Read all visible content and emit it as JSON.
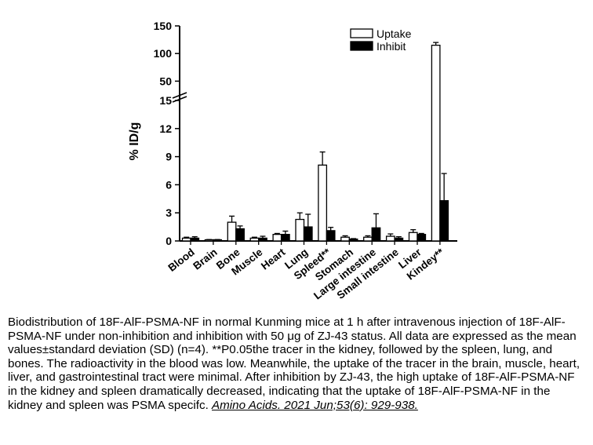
{
  "chart_data": {
    "type": "bar",
    "ylabel": "% ID/g",
    "categories": [
      "Blood",
      "Brain",
      "Bone",
      "Muscle",
      "Heart",
      "Lung",
      "Spleed**",
      "Stomach",
      "Large intestine",
      "Small intestine",
      "Liver",
      "Kindey**"
    ],
    "series": [
      {
        "name": "Uptake",
        "color": "#ffffff",
        "values": [
          0.3,
          0.1,
          2.0,
          0.3,
          0.7,
          2.3,
          8.1,
          0.4,
          0.4,
          0.5,
          0.9,
          115
        ],
        "errors": [
          0.1,
          0.05,
          0.65,
          0.1,
          0.1,
          0.7,
          1.4,
          0.15,
          0.15,
          0.25,
          0.3,
          5
        ]
      },
      {
        "name": "Inhibit",
        "color": "#000000",
        "values": [
          0.3,
          0.1,
          1.3,
          0.3,
          0.7,
          1.5,
          1.1,
          0.2,
          1.4,
          0.3,
          0.7,
          4.3
        ],
        "errors": [
          0.15,
          0.05,
          0.3,
          0.2,
          0.35,
          1.35,
          0.35,
          0.05,
          1.5,
          0.15,
          0.1,
          2.9
        ]
      }
    ],
    "y_axis": {
      "broken": true,
      "lower_range": [
        0,
        15
      ],
      "lower_ticks": [
        "0",
        "3",
        "6",
        "9",
        "12",
        "15"
      ],
      "upper_range": [
        25,
        150
      ],
      "upper_ticks": [
        "50",
        "100",
        "150"
      ]
    },
    "legend_position": "top-right",
    "grid": false
  },
  "caption": {
    "text": "Biodistribution of 18F-AlF-PSMA-NF in normal Kunming mice at 1  h after intravenous injection of 18F-AlF-PSMA-NF under non-inhibition and inhibition with 50  μg of ZJ-43 status. All data are expressed as the mean values±standard deviation (SD) (n=4). **P0.05the tracer in the kidney, followed by the spleen, lung, and bones. The radioactivity in the blood was low. Meanwhile, the uptake of the tracer in the brain, muscle, heart, liver, and gastrointestinal tract were minimal. After inhibition by ZJ-43, the high uptake of 18F-AlF-PSMA-NF in the kidney and spleen dramatically decreased, indicating that the uptake of 18F-AlF-PSMA-NF in the kidney and spleen was PSMA specifc. ",
    "citation": "Amino Acids. 2021 Jun;53(6): 929-938."
  }
}
